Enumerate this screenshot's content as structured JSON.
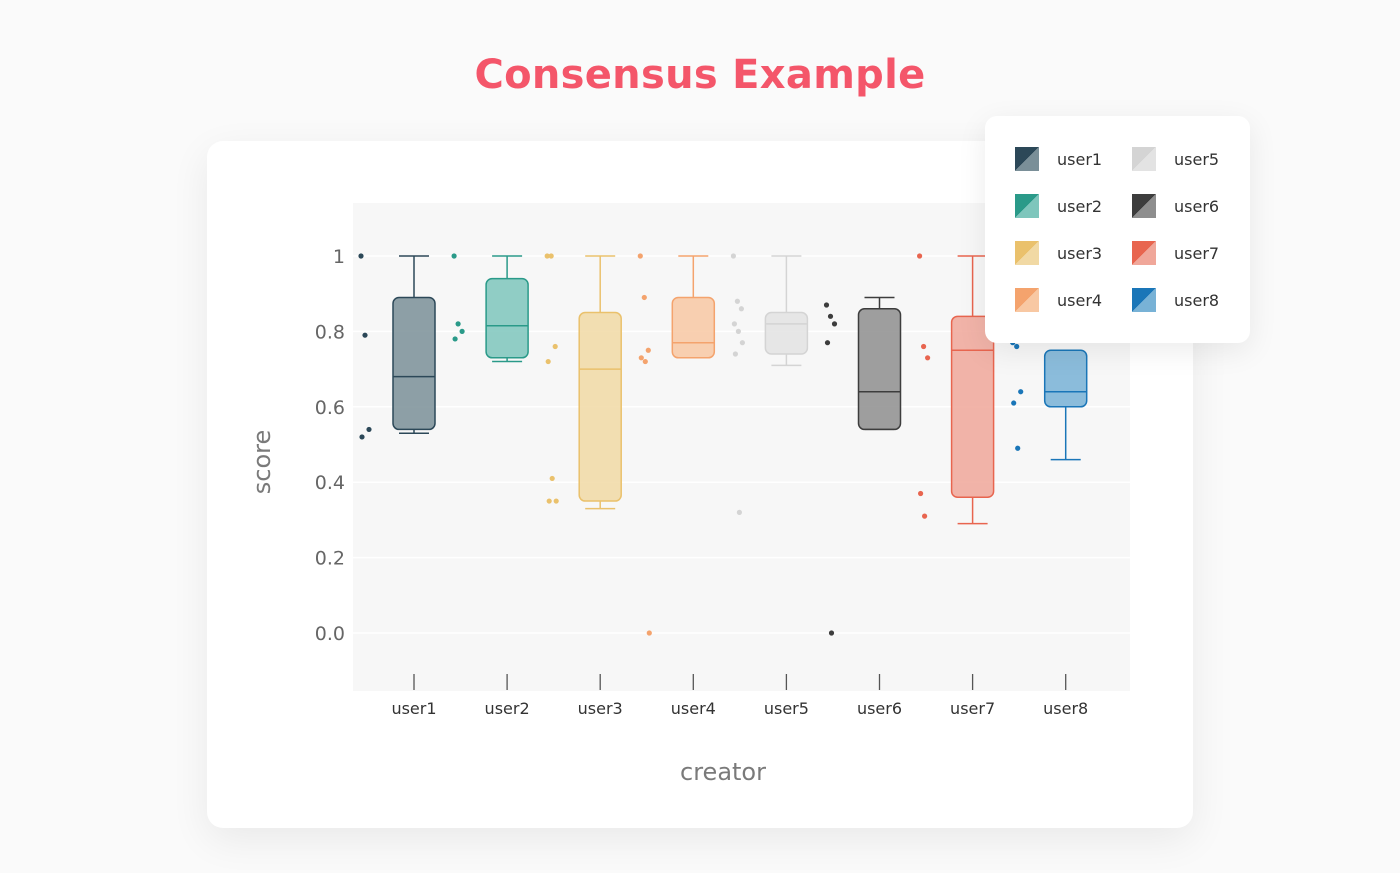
{
  "title": "Consensus Example",
  "chart_data": {
    "type": "box",
    "xlabel": "creator",
    "ylabel": "score",
    "ylim": [
      -0.16,
      1.16
    ],
    "y_ticks": [
      {
        "value": 1.0,
        "label": "1"
      },
      {
        "value": 0.8,
        "label": "0.8"
      },
      {
        "value": 0.6,
        "label": "0.6"
      },
      {
        "value": 0.4,
        "label": "0.4"
      },
      {
        "value": 0.2,
        "label": "0.2"
      },
      {
        "value": 0.0,
        "label": "0.0"
      }
    ],
    "grid": true,
    "legend_position": "top-right",
    "categories": [
      "user1",
      "user2",
      "user3",
      "user4",
      "user5",
      "user6",
      "user7",
      "user8"
    ],
    "series": [
      {
        "name": "user1",
        "dark": "#2c4858",
        "light": "#7a8f98",
        "q1": 0.54,
        "median": 0.68,
        "q3": 0.89,
        "whisker_low": 0.53,
        "whisker_high": 1.0,
        "points": [
          1.0,
          0.79,
          0.54,
          0.52
        ]
      },
      {
        "name": "user2",
        "dark": "#2a9a89",
        "light": "#7ec6bc",
        "q1": 0.73,
        "median": 0.815,
        "q3": 0.94,
        "whisker_low": 0.72,
        "whisker_high": 1.0,
        "points": [
          1.0,
          0.82,
          0.8,
          0.78
        ]
      },
      {
        "name": "user3",
        "dark": "#eac16c",
        "light": "#f1d9a4",
        "q1": 0.35,
        "median": 0.7,
        "q3": 0.85,
        "whisker_low": 0.33,
        "whisker_high": 1.0,
        "points": [
          1.0,
          1.0,
          0.76,
          0.72,
          0.41,
          0.35,
          0.35
        ]
      },
      {
        "name": "user4",
        "dark": "#f4a36d",
        "light": "#f8c8a3",
        "q1": 0.73,
        "median": 0.77,
        "q3": 0.89,
        "whisker_low": 0.73,
        "whisker_high": 1.0,
        "points": [
          1.0,
          0.89,
          0.75,
          0.73,
          0.72,
          0.0
        ]
      },
      {
        "name": "user5",
        "dark": "#d4d4d4",
        "light": "#e3e3e3",
        "q1": 0.74,
        "median": 0.82,
        "q3": 0.85,
        "whisker_low": 0.71,
        "whisker_high": 1.0,
        "points": [
          1.0,
          0.88,
          0.86,
          0.82,
          0.8,
          0.77,
          0.74,
          0.32
        ]
      },
      {
        "name": "user6",
        "dark": "#3d3d3d",
        "light": "#8e8e8e",
        "q1": 0.54,
        "median": 0.64,
        "q3": 0.86,
        "whisker_low": 0.54,
        "whisker_high": 0.89,
        "points": [
          0.87,
          0.84,
          0.82,
          0.77,
          0.0
        ]
      },
      {
        "name": "user7",
        "dark": "#e8654f",
        "light": "#f0a79a",
        "q1": 0.36,
        "median": 0.75,
        "q3": 0.84,
        "whisker_low": 0.29,
        "whisker_high": 1.0,
        "points": [
          1.0,
          0.76,
          0.73,
          0.37,
          0.31
        ]
      },
      {
        "name": "user8",
        "dark": "#1a76b8",
        "light": "#78b2d6",
        "q1": 0.6,
        "median": 0.64,
        "q3": 0.75,
        "whisker_low": 0.46,
        "whisker_high": 0.75,
        "points": [
          0.77,
          0.76,
          0.64,
          0.61,
          0.49
        ]
      }
    ]
  }
}
